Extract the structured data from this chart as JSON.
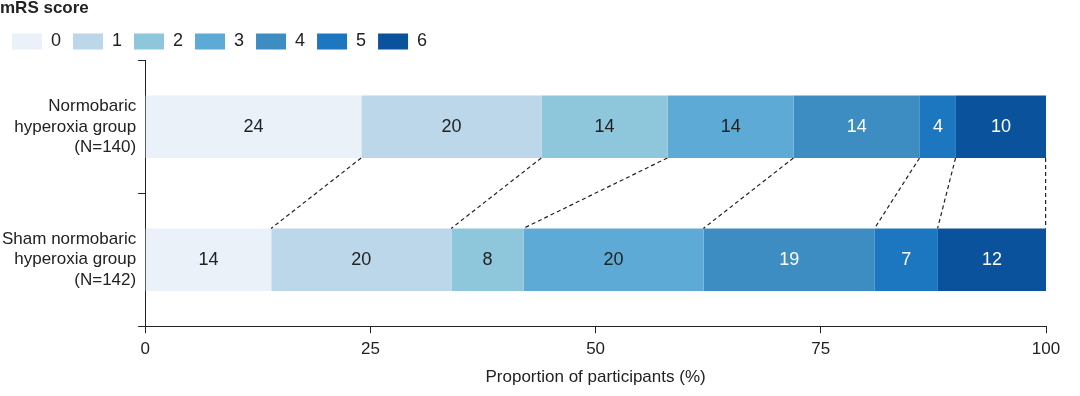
{
  "chart_data": {
    "type": "bar",
    "orientation": "horizontal",
    "stacked": true,
    "data_labels": true,
    "legend": "top left",
    "legend_title": "mRS score",
    "xlabel": "Proportion of participants (%)",
    "xlim": [
      0,
      100
    ],
    "xticks": [
      0,
      25,
      50,
      75,
      100
    ],
    "grid": false,
    "categories": [
      "Normobaric\nhyperoxia group\n(N=140)",
      "Sham normobaric\nhyperoxia group\n(N=142)"
    ],
    "series": [
      {
        "name": "0",
        "color": "#eaf1f9",
        "values": [
          24,
          14
        ]
      },
      {
        "name": "1",
        "color": "#bcd6ea",
        "values": [
          20,
          20
        ]
      },
      {
        "name": "2",
        "color": "#8ec6dc",
        "values": [
          14,
          8
        ]
      },
      {
        "name": "3",
        "color": "#5caad5",
        "values": [
          14,
          20
        ]
      },
      {
        "name": "4",
        "color": "#3d8dc2",
        "values": [
          14,
          19
        ]
      },
      {
        "name": "5",
        "color": "#1d76c0",
        "values": [
          4,
          7
        ]
      },
      {
        "name": "6",
        "color": "#0b529c",
        "values": [
          10,
          12
        ]
      }
    ]
  }
}
